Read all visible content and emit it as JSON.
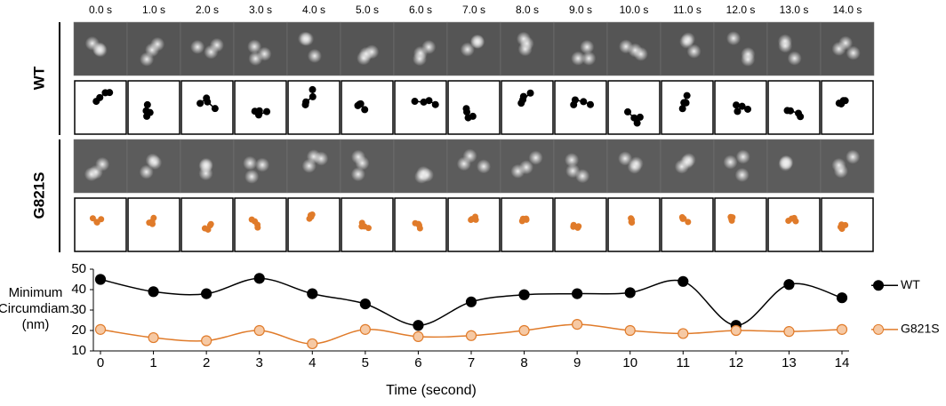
{
  "frames": {
    "times": [
      "0.0 s",
      "1.0 s",
      "2.0 s",
      "3.0 s",
      "4.0 s",
      "5.0 s",
      "6.0 s",
      "7.0 s",
      "8.0 s",
      "9.0 s",
      "10.0 s",
      "11.0 s",
      "12.0 s",
      "13.0 s",
      "14.0 s"
    ],
    "rows": [
      "WT",
      "G821S"
    ]
  },
  "chart_data": {
    "type": "line",
    "x": [
      0,
      1,
      2,
      3,
      4,
      5,
      6,
      7,
      8,
      9,
      10,
      11,
      12,
      13,
      14
    ],
    "series": [
      {
        "name": "WT",
        "color": "#000000",
        "values": [
          45,
          39,
          38,
          45.5,
          38,
          33,
          22.5,
          34,
          37.5,
          38,
          38.5,
          44,
          22.5,
          42.5,
          36
        ]
      },
      {
        "name": "G821S",
        "color": "#e07b2a",
        "values": [
          20.5,
          16.5,
          15,
          20,
          13.5,
          20.5,
          17,
          17.5,
          20,
          23,
          20,
          18.5,
          20,
          19.5,
          20.5
        ]
      }
    ],
    "xlim": [
      0,
      14
    ],
    "xticks": [
      0,
      1,
      2,
      3,
      4,
      5,
      6,
      7,
      8,
      9,
      10,
      11,
      12,
      13,
      14
    ],
    "ylim": [
      10,
      50
    ],
    "yticks": [
      10,
      20,
      30,
      40,
      50
    ],
    "xlabel": "Time (second)",
    "ylabel": [
      "Minimum",
      "Circumdiam.",
      "(nm)"
    ],
    "legend": "right"
  }
}
